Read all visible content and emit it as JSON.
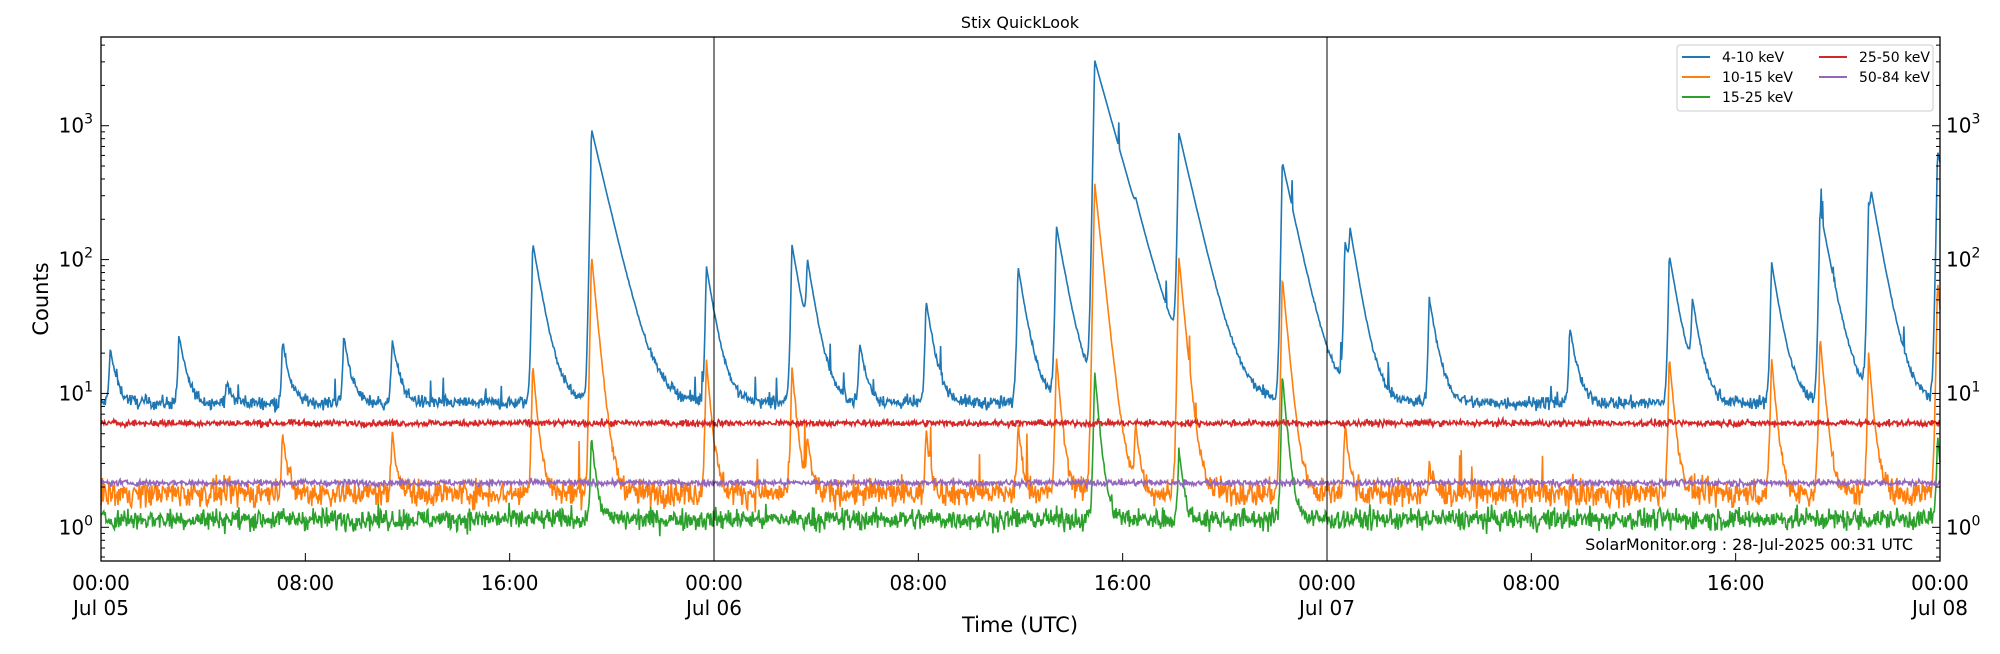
{
  "chart_data": {
    "type": "line",
    "title": "Stix QuickLook",
    "xlabel": "Time (UTC)",
    "ylabel": "Counts",
    "yscale": "log",
    "ylim": [
      0.56,
      4600
    ],
    "xlim": [
      "2025-07-05T00:00",
      "2025-07-08T00:00"
    ],
    "grid": false,
    "legend_placement": "top-right",
    "day_markers": [
      "2025-07-06T00:00",
      "2025-07-07T00:00"
    ],
    "x_tick_labels": [
      {
        "t": "2025-07-05T00:00",
        "time": "00:00",
        "date": "Jul 05"
      },
      {
        "t": "2025-07-05T08:00",
        "time": "08:00",
        "date": ""
      },
      {
        "t": "2025-07-05T16:00",
        "time": "16:00",
        "date": ""
      },
      {
        "t": "2025-07-06T00:00",
        "time": "00:00",
        "date": "Jul 06"
      },
      {
        "t": "2025-07-06T08:00",
        "time": "08:00",
        "date": ""
      },
      {
        "t": "2025-07-06T16:00",
        "time": "16:00",
        "date": ""
      },
      {
        "t": "2025-07-07T00:00",
        "time": "00:00",
        "date": "Jul 07"
      },
      {
        "t": "2025-07-07T08:00",
        "time": "08:00",
        "date": ""
      },
      {
        "t": "2025-07-07T16:00",
        "time": "16:00",
        "date": ""
      },
      {
        "t": "2025-07-08T00:00",
        "time": "00:00",
        "date": "Jul 08"
      }
    ],
    "y_tick_labels": [
      {
        "value": 1,
        "base": "10",
        "exp": "0"
      },
      {
        "value": 10,
        "base": "10",
        "exp": "1"
      },
      {
        "value": 100,
        "base": "10",
        "exp": "2"
      },
      {
        "value": 1000,
        "base": "10",
        "exp": "3"
      }
    ],
    "series": [
      {
        "name": "4-10 keV",
        "color": "#1f77b4",
        "baseline": 8.5,
        "peaks": [
          [
            "2025-07-05T00:21",
            22
          ],
          [
            "2025-07-05T03:03",
            28
          ],
          [
            "2025-07-05T04:54",
            12
          ],
          [
            "2025-07-05T07:06",
            25
          ],
          [
            "2025-07-05T09:30",
            27
          ],
          [
            "2025-07-05T11:24",
            26
          ],
          [
            "2025-07-05T16:54",
            135
          ],
          [
            "2025-07-05T19:12",
            950
          ],
          [
            "2025-07-05T23:42",
            90
          ],
          [
            "2025-07-06T03:03",
            130
          ],
          [
            "2025-07-06T03:39",
            80
          ],
          [
            "2025-07-06T05:42",
            24
          ],
          [
            "2025-07-06T08:18",
            50
          ],
          [
            "2025-07-06T11:54",
            90
          ],
          [
            "2025-07-06T13:24",
            180
          ],
          [
            "2025-07-06T14:54",
            3100
          ],
          [
            "2025-07-06T16:30",
            50
          ],
          [
            "2025-07-06T18:12",
            870
          ],
          [
            "2025-07-06T22:15",
            540
          ],
          [
            "2025-07-07T00:42",
            135
          ],
          [
            "2025-07-07T00:54",
            100
          ],
          [
            "2025-07-07T04:00",
            53
          ],
          [
            "2025-07-07T09:30",
            32
          ],
          [
            "2025-07-07T13:24",
            110
          ],
          [
            "2025-07-07T14:18",
            45
          ],
          [
            "2025-07-07T17:24",
            97
          ],
          [
            "2025-07-07T19:18",
            240
          ],
          [
            "2025-07-07T21:12",
            250
          ],
          [
            "2025-07-07T21:18",
            140
          ],
          [
            "2025-07-07T23:54",
            650
          ]
        ]
      },
      {
        "name": "10-15 keV",
        "color": "#ff7f0e",
        "baseline": 1.8,
        "peaks": [
          [
            "2025-07-05T07:06",
            5.5
          ],
          [
            "2025-07-05T11:24",
            5.5
          ],
          [
            "2025-07-05T16:54",
            17
          ],
          [
            "2025-07-05T19:12",
            110
          ],
          [
            "2025-07-05T23:42",
            18
          ],
          [
            "2025-07-06T03:03",
            16
          ],
          [
            "2025-07-06T03:39",
            4.5
          ],
          [
            "2025-07-06T08:18",
            5.5
          ],
          [
            "2025-07-06T11:54",
            6
          ],
          [
            "2025-07-06T13:24",
            19
          ],
          [
            "2025-07-06T14:54",
            380
          ],
          [
            "2025-07-06T16:30",
            6
          ],
          [
            "2025-07-06T18:12",
            105
          ],
          [
            "2025-07-06T22:15",
            75
          ],
          [
            "2025-07-07T00:42",
            6
          ],
          [
            "2025-07-07T04:00",
            3
          ],
          [
            "2025-07-07T13:24",
            19
          ],
          [
            "2025-07-07T17:24",
            19
          ],
          [
            "2025-07-07T19:18",
            27
          ],
          [
            "2025-07-07T21:12",
            20
          ],
          [
            "2025-07-07T23:54",
            70
          ]
        ]
      },
      {
        "name": "15-25 keV",
        "color": "#2ca02c",
        "baseline": 1.15,
        "peaks": [
          [
            "2025-07-05T19:12",
            5
          ],
          [
            "2025-07-06T14:54",
            15
          ],
          [
            "2025-07-06T18:12",
            4
          ],
          [
            "2025-07-06T22:15",
            14
          ],
          [
            "2025-07-07T23:54",
            5
          ]
        ]
      },
      {
        "name": "25-50 keV",
        "color": "#d62728",
        "baseline": 6.0,
        "peaks": []
      },
      {
        "name": "50-84 keV",
        "color": "#9467bd",
        "baseline": 2.15,
        "peaks": []
      }
    ],
    "annotation": "SolarMonitor.org : 28-Jul-2025 00:31 UTC"
  }
}
